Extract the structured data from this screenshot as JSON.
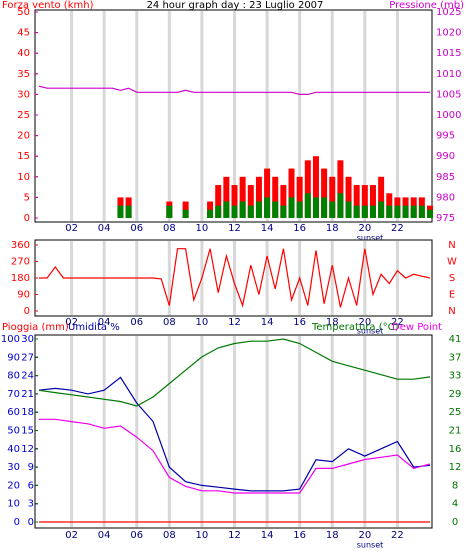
{
  "chart_data": [
    {
      "type": "bar",
      "title": "24 hour graph day : 23 Luglio 2007",
      "annotation": "sunset",
      "grid": true,
      "x": [
        0,
        0.5,
        1,
        1.5,
        2,
        2.5,
        3,
        3.5,
        4,
        4.5,
        5,
        5.5,
        6,
        6.5,
        7,
        7.5,
        8,
        8.5,
        9,
        9.5,
        10,
        10.5,
        11,
        11.5,
        12,
        12.5,
        13,
        13.5,
        14,
        14.5,
        15,
        15.5,
        16,
        16.5,
        17,
        17.5,
        18,
        18.5,
        19,
        19.5,
        20,
        20.5,
        21,
        21.5,
        22,
        22.5,
        23,
        23.5,
        24
      ],
      "xlim": [
        0,
        24
      ],
      "xticks": [
        {
          "value": 2,
          "label": "02"
        },
        {
          "value": 4,
          "label": "04"
        },
        {
          "value": 6,
          "label": "06"
        },
        {
          "value": 8,
          "label": "08"
        },
        {
          "value": 10,
          "label": "10"
        },
        {
          "value": 12,
          "label": "12"
        },
        {
          "value": 14,
          "label": "14"
        },
        {
          "value": 16,
          "label": "16"
        },
        {
          "value": 18,
          "label": "18"
        },
        {
          "value": 20,
          "label": "20"
        },
        {
          "value": 22,
          "label": "22"
        }
      ],
      "ylim": [
        0,
        50
      ],
      "yticks": [
        0,
        5,
        10,
        15,
        20,
        25,
        30,
        35,
        40,
        45,
        50
      ],
      "y2lim": [
        975,
        1025
      ],
      "y2ticks": [
        975,
        980,
        985,
        990,
        995,
        1000,
        1005,
        1010,
        1015,
        1020,
        1025
      ],
      "series": [
        {
          "name": "Forza vento (kmh)",
          "color": "#ff0000",
          "values": [
            0,
            0,
            0,
            0,
            0,
            0,
            0,
            0,
            0,
            0,
            5,
            5,
            0,
            0,
            0,
            0,
            4,
            0,
            4,
            0,
            0,
            4,
            8,
            10,
            8,
            10,
            8,
            10,
            12,
            10,
            8,
            12,
            10,
            14,
            15,
            12,
            10,
            14,
            10,
            8,
            8,
            8,
            10,
            6,
            5,
            5,
            5,
            5,
            3
          ]
        },
        {
          "color": "#008000",
          "values": [
            0,
            0,
            0,
            0,
            0,
            0,
            0,
            0,
            0,
            0,
            3,
            3,
            0,
            0,
            0,
            0,
            3,
            0,
            2,
            0,
            0,
            2,
            3,
            4,
            3,
            4,
            3,
            4,
            5,
            4,
            3,
            5,
            4,
            6,
            5,
            5,
            4,
            6,
            4,
            3,
            3,
            3,
            4,
            3,
            3,
            3,
            3,
            3,
            2
          ]
        },
        {
          "name": "Pressione (mb)",
          "color": "#cc00cc",
          "axis": "y2",
          "values": [
            1007,
            1006.5,
            1006.5,
            1006.5,
            1006.5,
            1006.5,
            1006.5,
            1006.5,
            1006.5,
            1006.5,
            1006,
            1006.5,
            1005.5,
            1005.5,
            1005.5,
            1005.5,
            1005.5,
            1005.5,
            1006,
            1005.5,
            1005.5,
            1005.5,
            1005.5,
            1005.5,
            1005.5,
            1005.5,
            1005.5,
            1005.5,
            1005.5,
            1005.5,
            1005.5,
            1005.5,
            1005,
            1005,
            1005.5,
            1005.5,
            1005.5,
            1005.5,
            1005.5,
            1005.5,
            1005.5,
            1005.5,
            1005.5,
            1005.5,
            1005.5,
            1005.5,
            1005.5,
            1005.5,
            1005.5
          ]
        }
      ]
    },
    {
      "type": "line",
      "annotation": "sunset",
      "grid": true,
      "x": [
        0,
        0.5,
        1,
        1.5,
        2,
        2.5,
        3,
        3.5,
        4,
        4.5,
        5,
        5.5,
        6,
        6.5,
        7,
        7.5,
        8,
        8.5,
        9,
        9.5,
        10,
        10.5,
        11,
        11.5,
        12,
        12.5,
        13,
        13.5,
        14,
        14.5,
        15,
        15.5,
        16,
        16.5,
        17,
        17.5,
        18,
        18.5,
        19,
        19.5,
        20,
        20.5,
        21,
        21.5,
        22,
        22.5,
        23,
        23.5,
        24
      ],
      "xlim": [
        0,
        24
      ],
      "xticks": [
        {
          "value": 2,
          "label": "02"
        },
        {
          "value": 4,
          "label": "04"
        },
        {
          "value": 6,
          "label": "06"
        },
        {
          "value": 8,
          "label": "08"
        },
        {
          "value": 10,
          "label": "10"
        },
        {
          "value": 12,
          "label": "12"
        },
        {
          "value": 14,
          "label": "14"
        },
        {
          "value": 16,
          "label": "16"
        },
        {
          "value": 18,
          "label": "18"
        },
        {
          "value": 20,
          "label": "20"
        },
        {
          "value": 22,
          "label": "22"
        }
      ],
      "ylim": [
        0,
        360
      ],
      "yticks": [
        0,
        90,
        180,
        270,
        360
      ],
      "y2lim": [
        0,
        360
      ],
      "y2ticks": [
        {
          "value": 360,
          "label": "N"
        },
        {
          "value": 270,
          "label": "W"
        },
        {
          "value": 180,
          "label": "S"
        },
        {
          "value": 90,
          "label": "E"
        },
        {
          "value": 0,
          "label": "N"
        }
      ],
      "series": [
        {
          "color": "#ff0000",
          "values": [
            180,
            180,
            240,
            180,
            180,
            180,
            180,
            180,
            180,
            180,
            180,
            180,
            180,
            180,
            180,
            175,
            30,
            340,
            340,
            60,
            180,
            340,
            100,
            300,
            150,
            30,
            250,
            90,
            300,
            120,
            340,
            60,
            180,
            30,
            330,
            40,
            250,
            20,
            180,
            30,
            340,
            90,
            200,
            150,
            220,
            180,
            200,
            190,
            180
          ]
        }
      ]
    },
    {
      "type": "line",
      "annotation": "sunset",
      "grid": true,
      "x": [
        0,
        1,
        2,
        3,
        4,
        5,
        6,
        7,
        8,
        9,
        10,
        11,
        12,
        13,
        14,
        15,
        16,
        17,
        18,
        19,
        20,
        21,
        22,
        23,
        24
      ],
      "xlim": [
        0,
        24
      ],
      "xticks": [
        {
          "value": 2,
          "label": "02"
        },
        {
          "value": 4,
          "label": "04"
        },
        {
          "value": 6,
          "label": "06"
        },
        {
          "value": 8,
          "label": "08"
        },
        {
          "value": 10,
          "label": "10"
        },
        {
          "value": 12,
          "label": "12"
        },
        {
          "value": 14,
          "label": "14"
        },
        {
          "value": 16,
          "label": "16"
        },
        {
          "value": 18,
          "label": "18"
        },
        {
          "value": 20,
          "label": "20"
        },
        {
          "value": 22,
          "label": "22"
        }
      ],
      "ylim": [
        0,
        100
      ],
      "yticks": [
        0,
        10,
        20,
        30,
        40,
        50,
        60,
        70,
        80,
        90,
        100
      ],
      "y3lim": [
        0,
        30
      ],
      "y3ticks": [
        0,
        3,
        6,
        9,
        12,
        15,
        18,
        21,
        24,
        27,
        30
      ],
      "y2lim": [
        0,
        41
      ],
      "y2ticks": [
        0,
        {
          "value": 4.1,
          "label": "4"
        },
        {
          "value": 8.2,
          "label": "8"
        },
        {
          "value": 12.3,
          "label": "12"
        },
        {
          "value": 16.4,
          "label": "16"
        },
        {
          "value": 20.5,
          "label": "21"
        },
        {
          "value": 24.6,
          "label": "25"
        },
        {
          "value": 28.7,
          "label": "29"
        },
        {
          "value": 32.8,
          "label": "33"
        },
        {
          "value": 36.9,
          "label": "37"
        },
        41
      ],
      "series": [
        {
          "name": "Umidita %",
          "color": "#0000aa",
          "values": [
            72,
            73,
            72,
            70,
            72,
            79,
            65,
            55,
            30,
            22,
            20,
            19,
            18,
            17,
            17,
            17,
            18,
            34,
            33,
            40,
            36,
            40,
            44,
            30,
            31
          ]
        },
        {
          "name": "Temperatura (°C)",
          "color": "#007700",
          "axis": "y2",
          "values": [
            29.5,
            29,
            28.5,
            28,
            27.5,
            27,
            26,
            28,
            31,
            34,
            37,
            39,
            40,
            40.5,
            40.5,
            41,
            40,
            38,
            36,
            35,
            34,
            33,
            32,
            32,
            32.5
          ]
        },
        {
          "name": "Dew Point",
          "color": "#ee00ee",
          "axis": "y2",
          "values": [
            23,
            23,
            22.5,
            22,
            21,
            21.5,
            19,
            16,
            10,
            8,
            7,
            7,
            6.5,
            6.5,
            6.5,
            6.5,
            6.5,
            12,
            12,
            13,
            14,
            14.5,
            15,
            12,
            13
          ]
        },
        {
          "name": "Pioggia (mm)",
          "color": "#ff0000",
          "axis": "y3",
          "values": [
            0,
            0,
            0,
            0,
            0,
            0,
            0,
            0,
            0,
            0,
            0,
            0,
            0,
            0,
            0,
            0,
            0,
            0,
            0,
            0,
            0,
            0,
            0,
            0,
            0
          ]
        }
      ]
    }
  ]
}
